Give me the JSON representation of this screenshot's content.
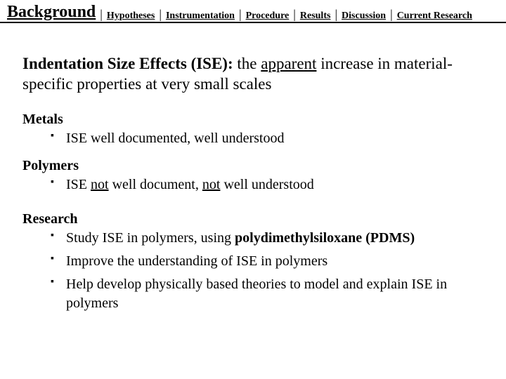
{
  "tabs": {
    "active": "Background",
    "others": [
      "Hypotheses",
      "Instrumentation",
      "Procedure",
      "Results",
      "Discussion",
      "Current Research"
    ]
  },
  "heading": {
    "term": "Indentation Size Effects (ISE):",
    "def_pre": "  the ",
    "def_underlined": "apparent",
    "def_post": " increase in material-specific properties at very small scales"
  },
  "sections": {
    "metals": {
      "title": "Metals",
      "items": [
        "ISE well documented, well understood"
      ]
    },
    "polymers": {
      "title": "Polymers",
      "item_html": "ISE <span class=\"u\">not</span> well document, <span class=\"u\">not</span> well understood"
    },
    "research": {
      "title": "Research",
      "item0_html": "Study ISE in polymers, using <span class=\"b\">polydimethylsiloxane (PDMS)</span>",
      "item1": "Improve the understanding of ISE in polymers",
      "item2": "Help develop physically based theories to model and explain ISE in polymers"
    }
  }
}
